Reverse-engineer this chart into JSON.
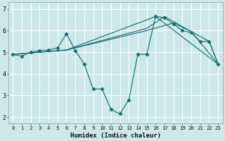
{
  "xlabel": "Humidex (Indice chaleur)",
  "bg_color": "#cce8e8",
  "line_color": "#1a7070",
  "grid_color": "#ffffff",
  "xlim": [
    -0.5,
    23.5
  ],
  "ylim": [
    1.7,
    7.3
  ],
  "yticks": [
    2,
    3,
    4,
    5,
    6,
    7
  ],
  "xticks": [
    0,
    1,
    2,
    3,
    4,
    5,
    6,
    7,
    8,
    9,
    10,
    11,
    12,
    13,
    14,
    15,
    16,
    17,
    18,
    19,
    20,
    21,
    22,
    23
  ],
  "series": {
    "main": {
      "x": [
        0,
        1,
        2,
        3,
        4,
        5,
        6,
        7,
        8,
        9,
        10,
        11,
        12,
        13,
        14,
        15,
        16,
        17,
        18,
        19,
        20,
        21,
        22,
        23
      ],
      "y": [
        4.9,
        4.82,
        5.0,
        5.08,
        5.1,
        5.2,
        5.85,
        5.08,
        4.45,
        3.3,
        3.3,
        2.35,
        2.15,
        2.8,
        4.9,
        4.9,
        6.65,
        6.6,
        6.3,
        6.0,
        5.9,
        5.5,
        5.5,
        4.45
      ]
    },
    "line1": {
      "x": [
        0,
        6,
        16,
        23
      ],
      "y": [
        4.9,
        5.1,
        6.65,
        4.45
      ]
    },
    "line2": {
      "x": [
        0,
        6,
        15,
        17,
        20,
        23
      ],
      "y": [
        4.9,
        5.1,
        6.1,
        6.65,
        5.95,
        4.45
      ]
    },
    "line3": {
      "x": [
        0,
        6,
        15,
        18,
        20,
        22,
        23
      ],
      "y": [
        4.9,
        5.1,
        6.0,
        6.35,
        5.95,
        5.5,
        4.45
      ]
    }
  }
}
